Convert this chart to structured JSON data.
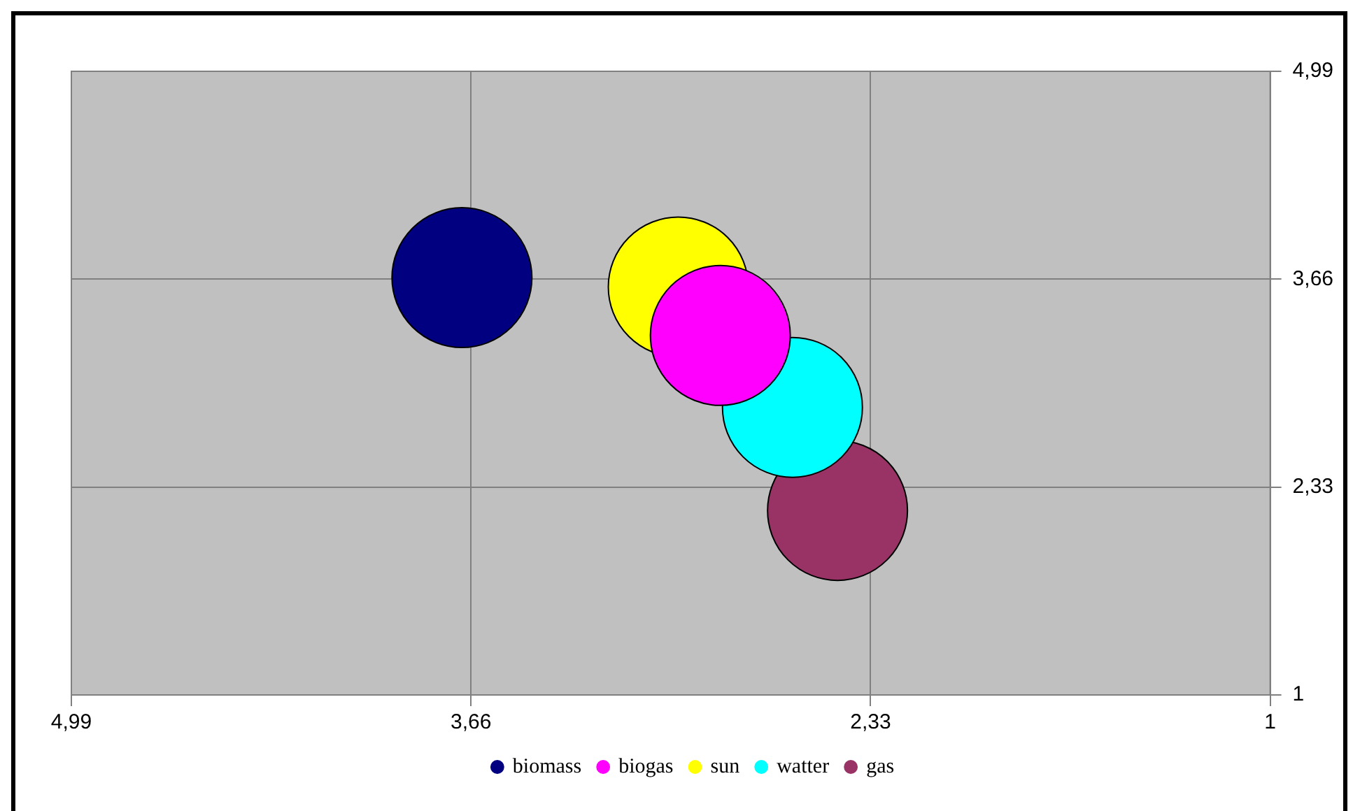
{
  "chart_data": {
    "type": "bubble",
    "series": [
      {
        "name": "biomass",
        "color": "#000080",
        "x": [
          3.69
        ],
        "values": [
          3.67
        ],
        "sizes": [
          1
        ]
      },
      {
        "name": "biogas",
        "color": "#ff00ff",
        "x": [
          2.83
        ],
        "values": [
          3.3
        ],
        "sizes": [
          1
        ]
      },
      {
        "name": "sun",
        "color": "#ffff00",
        "x": [
          2.97
        ],
        "values": [
          3.61
        ],
        "sizes": [
          1
        ]
      },
      {
        "name": "watter",
        "color": "#00ffff",
        "x": [
          2.59
        ],
        "values": [
          2.84
        ],
        "sizes": [
          1
        ]
      },
      {
        "name": "gas",
        "color": "#993366",
        "x": [
          2.44
        ],
        "values": [
          2.18
        ],
        "sizes": [
          1
        ]
      }
    ],
    "xlim": [
      4.99,
      1
    ],
    "xticks": [
      {
        "value": 4.99,
        "label": "4,99"
      },
      {
        "value": 3.66,
        "label": "3,66"
      },
      {
        "value": 2.33,
        "label": "2,33"
      },
      1
    ],
    "ylim": [
      1,
      4.99
    ],
    "yticks": [
      1,
      {
        "value": 2.33,
        "label": "2,33"
      },
      {
        "value": 3.66,
        "label": "3,66"
      },
      {
        "value": 4.99,
        "label": "4,99"
      }
    ],
    "grid": true,
    "legend": "bottom"
  }
}
